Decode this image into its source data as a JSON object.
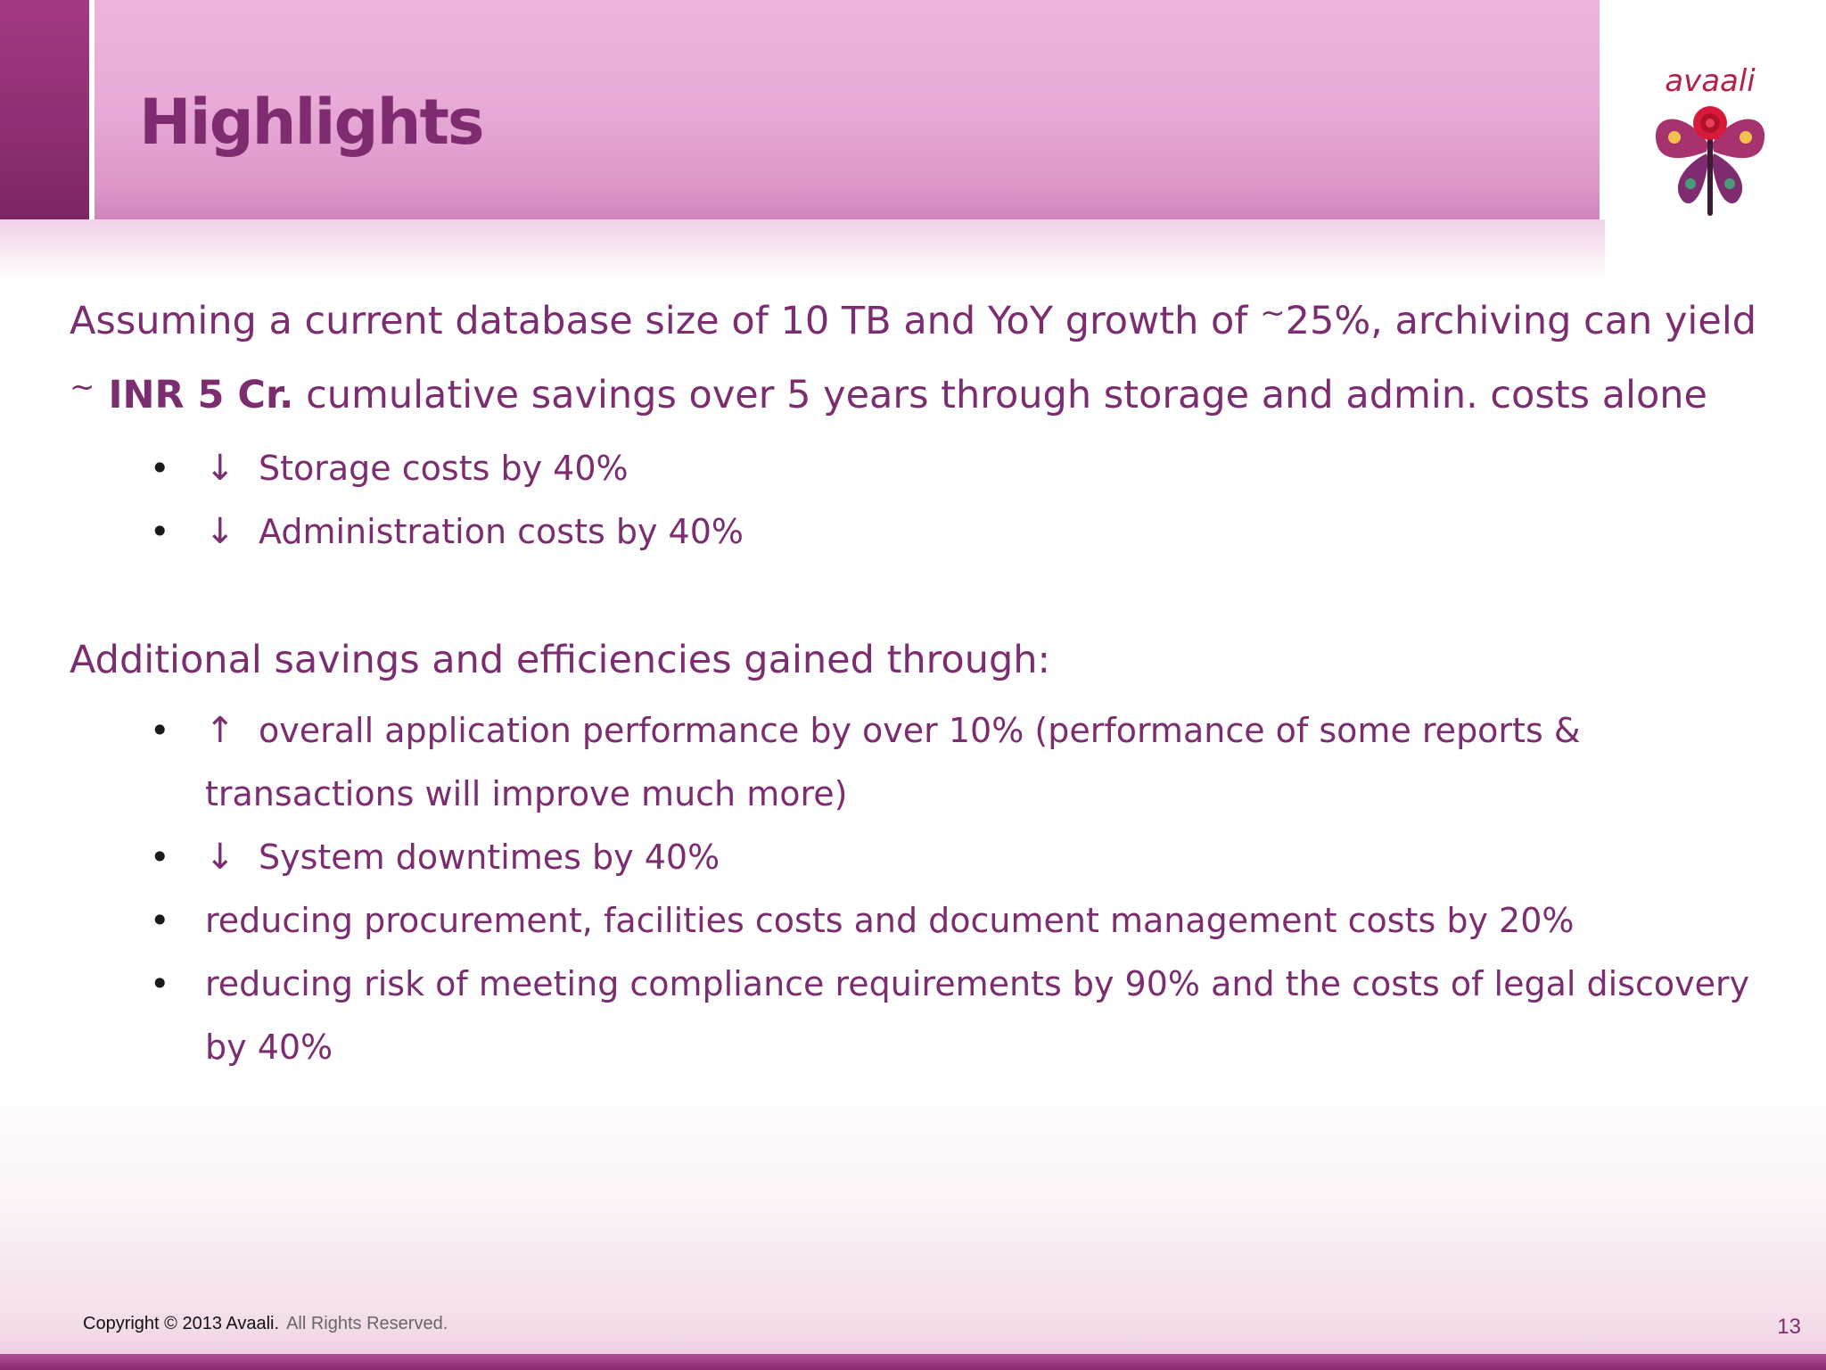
{
  "slide": {
    "title": "Highlights",
    "page_number": "13"
  },
  "logo": {
    "brand_text": "avaali",
    "icon": "butterfly-logo-icon",
    "colors": {
      "wing": "#a8326e",
      "rose": "#d8193a",
      "text": "#b3204a"
    }
  },
  "intro": {
    "part1": "Assuming a current database size of 10 TB and YoY growth of ",
    "tilde1": "~",
    "part2": "25%, archiving can yield",
    "tilde2": "~",
    "bold": " INR 5 Cr.",
    "part3": " cumulative savings over 5 years through storage and admin. costs alone"
  },
  "cost_bullets": [
    {
      "arrow": "↓",
      "text": "Storage costs by 40%"
    },
    {
      "arrow": "↓",
      "text": "Administration costs by 40%"
    }
  ],
  "additional": {
    "heading": "Additional savings and efficiencies gained through:",
    "bullets": [
      {
        "arrow": "↑",
        "text": "overall application performance by over 10% (performance of some reports & transactions will improve much more)"
      },
      {
        "arrow": "↓",
        "text": "System downtimes by 40%"
      },
      {
        "arrow": "",
        "text": "reducing procurement, facilities costs and document management costs by 20%"
      },
      {
        "arrow": "",
        "text": "reducing risk of meeting compliance requirements by 90% and the costs of legal discovery by 40%"
      }
    ]
  },
  "footer": {
    "copyright": "Copyright © 2013 Avaali.",
    "rights": "All Rights Reserved."
  },
  "theme": {
    "accent": "#7b2d70",
    "header": "#e8acd7",
    "bar": "#8e2e73"
  }
}
